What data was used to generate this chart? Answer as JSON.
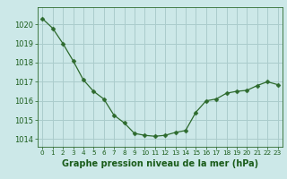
{
  "x": [
    0,
    1,
    2,
    3,
    4,
    5,
    6,
    7,
    8,
    9,
    10,
    11,
    12,
    13,
    14,
    15,
    16,
    17,
    18,
    19,
    20,
    21,
    22,
    23
  ],
  "y": [
    1020.3,
    1019.8,
    1019.0,
    1018.1,
    1017.1,
    1016.5,
    1016.1,
    1015.25,
    1014.85,
    1014.3,
    1014.2,
    1014.15,
    1014.2,
    1014.35,
    1014.45,
    1015.4,
    1016.0,
    1016.1,
    1016.4,
    1016.5,
    1016.55,
    1016.8,
    1017.0,
    1016.85
  ],
  "line_color": "#2d6a2d",
  "marker": "D",
  "marker_size": 2.5,
  "bg_color": "#cce8e8",
  "grid_color": "#aacccc",
  "xlabel": "Graphe pression niveau de la mer (hPa)",
  "xlabel_color": "#1a5c1a",
  "xlabel_fontsize": 7,
  "tick_color": "#1a5c1a",
  "tick_fontsize": 6,
  "ylim": [
    1013.6,
    1020.9
  ],
  "xlim": [
    -0.5,
    23.5
  ],
  "yticks": [
    1014,
    1015,
    1016,
    1017,
    1018,
    1019,
    1020
  ],
  "xticks": [
    0,
    1,
    2,
    3,
    4,
    5,
    6,
    7,
    8,
    9,
    10,
    11,
    12,
    13,
    14,
    15,
    16,
    17,
    18,
    19,
    20,
    21,
    22,
    23
  ]
}
